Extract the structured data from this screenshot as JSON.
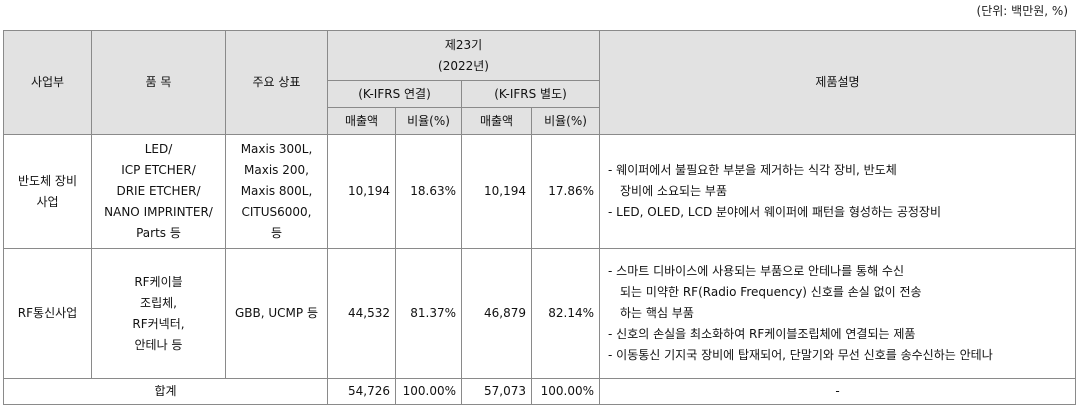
{
  "unit_note": "(단위: 백만원, %)",
  "headers": {
    "division": "사업부",
    "item": "품 목",
    "brand": "주요 상표",
    "period": "제23기",
    "year": "(2022년)",
    "consolidated": "(K-IFRS 연결)",
    "separate": "(K-IFRS 별도)",
    "sales": "매출액",
    "ratio": "비율(%)",
    "description": "제품설명"
  },
  "rows": [
    {
      "division": [
        "반도체 장비",
        "사업"
      ],
      "item": [
        "LED/",
        "ICP ETCHER/",
        "DRIE ETCHER/",
        "NANO IMPRINTER/",
        "Parts 등"
      ],
      "brand": [
        "Maxis 300L,",
        "Maxis 200,",
        "Maxis 800L,",
        "CITUS6000,",
        "등"
      ],
      "cons_sales": "10,194",
      "cons_ratio": "18.63%",
      "sep_sales": "10,194",
      "sep_ratio": "17.86%",
      "description": [
        "- 웨이퍼에서 불필요한 부분을 제거하는 식각 장비, 반도체",
        "장비에 소요되는 부품",
        "- LED, OLED, LCD 분야에서 웨이퍼에 패턴을 형성하는 공정장비"
      ]
    },
    {
      "division": [
        "RF통신사업"
      ],
      "item": [
        "RF케이블",
        "조립체,",
        "RF커넥터,",
        "안테나 등"
      ],
      "brand": [
        "GBB, UCMP 등"
      ],
      "cons_sales": "44,532",
      "cons_ratio": "81.37%",
      "sep_sales": "46,879",
      "sep_ratio": "82.14%",
      "description": [
        "- 스마트 디바이스에 사용되는 부품으로 안테나를 통해 수신",
        "되는 미약한 RF(Radio Frequency) 신호를 손실 없이 전송",
        "하는 핵심 부품",
        "- 신호의 손실을 최소화하여 RF케이블조립체에 연결되는 제품",
        "- 이동통신 기지국 장비에 탑재되어, 단말기와 무선 신호를 송수신하는 안테나"
      ]
    }
  ],
  "total": {
    "label": "합계",
    "cons_sales": "54,726",
    "cons_ratio": "100.00%",
    "sep_sales": "57,073",
    "sep_ratio": "100.00%",
    "description": "-"
  }
}
